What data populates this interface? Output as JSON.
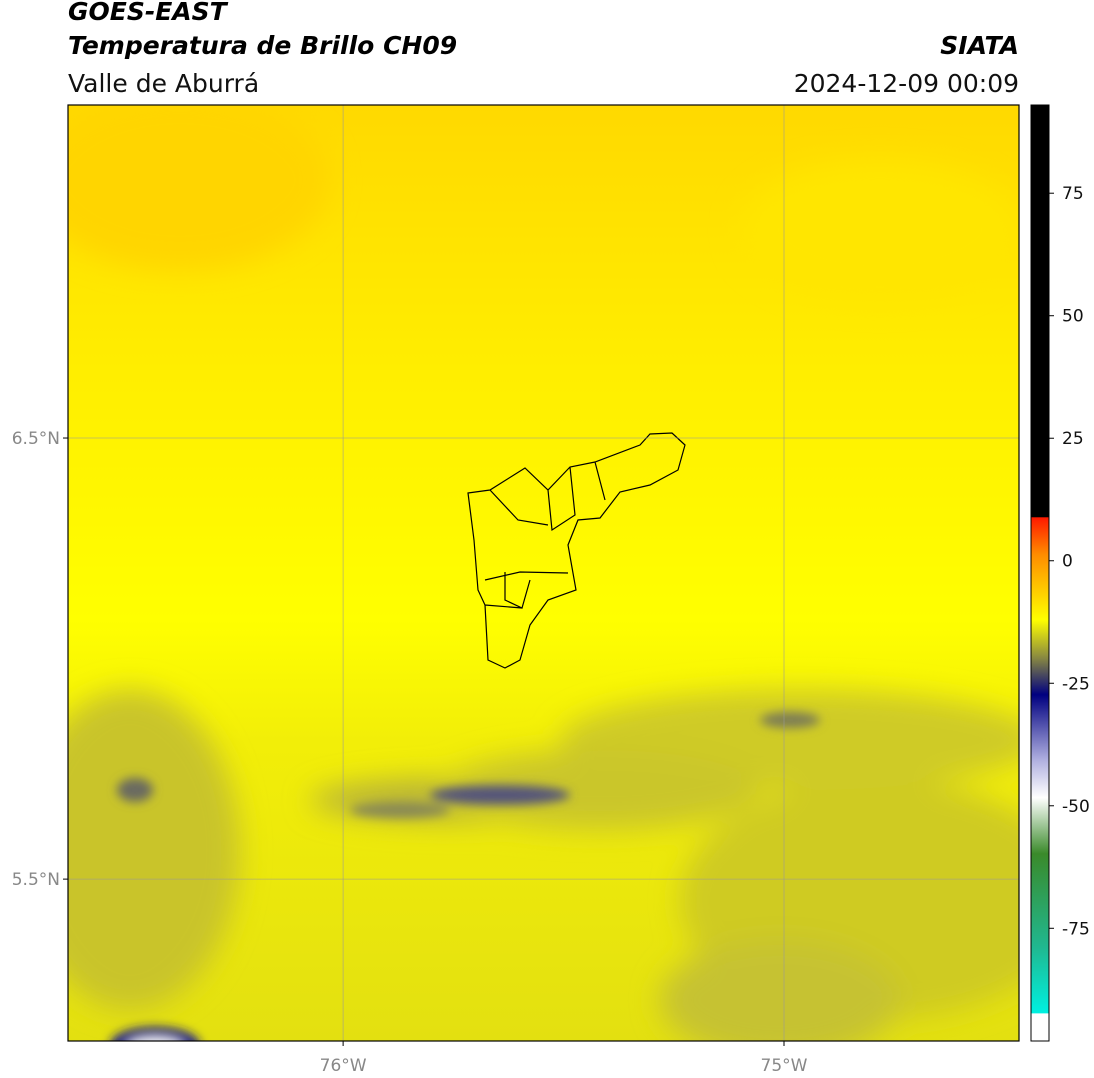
{
  "header": {
    "title": "GOES-EAST",
    "subtitle": "Temperatura de Brillo CH09",
    "region": "Valle de Aburrá",
    "source": "SIATA",
    "datetime": "2024-12-09 00:09"
  },
  "map": {
    "lon_range": [
      -76.624,
      -74.467
    ],
    "lat_range": [
      5.133,
      7.255
    ],
    "lat_ticks": [
      {
        "value": 6.5,
        "label": "6.5°N"
      },
      {
        "value": 5.5,
        "label": "5.5°N"
      }
    ],
    "lon_ticks": [
      {
        "value": -76,
        "label": "76°W"
      },
      {
        "value": -75,
        "label": "75°W"
      }
    ]
  },
  "colorbar": {
    "range": [
      -98,
      93
    ],
    "ticks": [
      75,
      50,
      25,
      0,
      -25,
      -50,
      -75
    ]
  }
}
